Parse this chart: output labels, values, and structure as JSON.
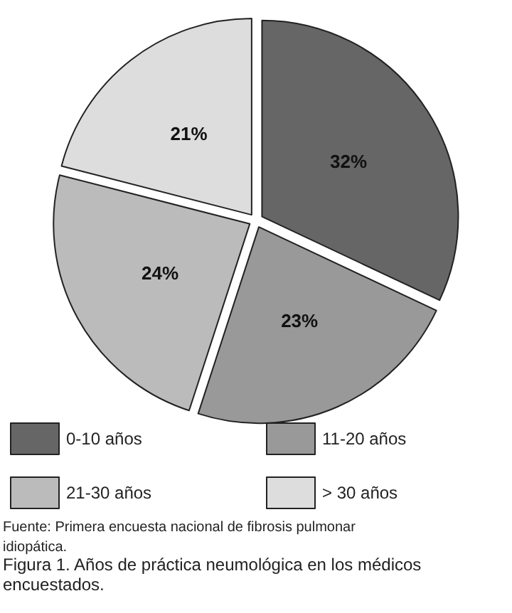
{
  "chart_data": {
    "type": "pie",
    "categories": [
      "0-10 años",
      "11-20 años",
      "21-30 años",
      "> 30 años"
    ],
    "values": [
      32,
      23,
      24,
      21
    ],
    "value_labels": [
      "32%",
      "23%",
      "24%",
      "21%"
    ],
    "colors": [
      "#666666",
      "#999999",
      "#bbbbbb",
      "#dddddd"
    ],
    "legend": "bottom",
    "annotations": [
      "Fuente: Primera encuesta nacional de fibrosis pulmonar idiopática.",
      "Figura 1. Años de práctica neumológica en los médicos encuestados."
    ]
  }
}
